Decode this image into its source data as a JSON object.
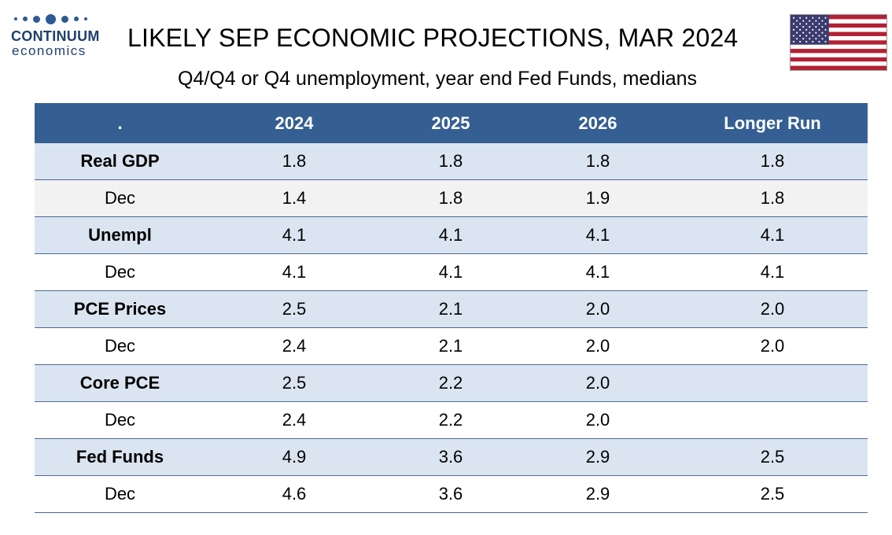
{
  "logo": {
    "line1": "CONTINUUM",
    "line2": "economics",
    "color": "#2e5a94"
  },
  "title": "LIKELY SEP ECONOMIC PROJECTIONS, MAR 2024",
  "subtitle": "Q4/Q4 or Q4 unemployment, year end Fed Funds, medians",
  "flag_icon": "us-flag-icon",
  "colors": {
    "header": "#355f92",
    "main_row": "#dbe5f1",
    "alt_row": "#f2f2f2"
  },
  "table": {
    "headers": [
      ".",
      "2024",
      "2025",
      "2026",
      "Longer Run"
    ],
    "rows": [
      {
        "label": "Real GDP",
        "type": "main",
        "values": [
          "1.8",
          "1.8",
          "1.8",
          "1.8"
        ]
      },
      {
        "label": "Dec",
        "type": "sub",
        "values": [
          "1.4",
          "1.8",
          "1.9",
          "1.8"
        ]
      },
      {
        "label": "Unempl",
        "type": "main",
        "values": [
          "4.1",
          "4.1",
          "4.1",
          "4.1"
        ]
      },
      {
        "label": "Dec",
        "type": "sub",
        "values": [
          "4.1",
          "4.1",
          "4.1",
          "4.1"
        ]
      },
      {
        "label": "PCE Prices",
        "type": "main",
        "values": [
          "2.5",
          "2.1",
          "2.0",
          "2.0"
        ]
      },
      {
        "label": "Dec",
        "type": "sub",
        "values": [
          "2.4",
          "2.1",
          "2.0",
          "2.0"
        ]
      },
      {
        "label": "Core PCE",
        "type": "main",
        "values": [
          "2.5",
          "2.2",
          "2.0",
          ""
        ]
      },
      {
        "label": "Dec",
        "type": "sub",
        "values": [
          "2.4",
          "2.2",
          "2.0",
          ""
        ]
      },
      {
        "label": "Fed Funds",
        "type": "main",
        "values": [
          "4.9",
          "3.6",
          "2.9",
          "2.5"
        ]
      },
      {
        "label": "Dec",
        "type": "sub",
        "values": [
          "4.6",
          "3.6",
          "2.9",
          "2.5"
        ]
      }
    ]
  }
}
